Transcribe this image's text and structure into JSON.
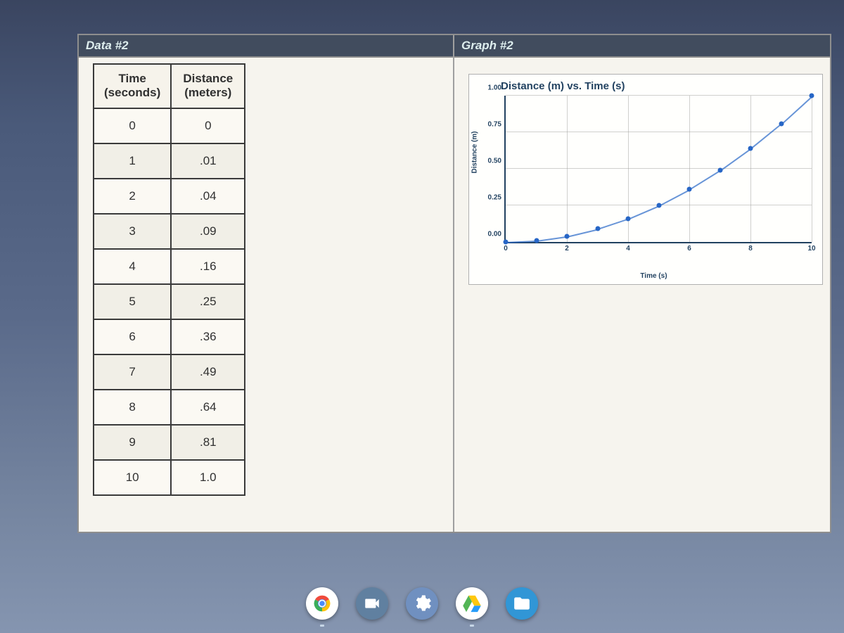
{
  "data_panel": {
    "title": "Data #2",
    "table": {
      "columns": [
        "Time\n(seconds)",
        "Distance\n(meters)"
      ],
      "rows": [
        [
          "0",
          "0"
        ],
        [
          "1",
          ".01"
        ],
        [
          "2",
          ".04"
        ],
        [
          "3",
          ".09"
        ],
        [
          "4",
          ".16"
        ],
        [
          "5",
          ".25"
        ],
        [
          "6",
          ".36"
        ],
        [
          "7",
          ".49"
        ],
        [
          "8",
          ".64"
        ],
        [
          "9",
          ".81"
        ],
        [
          "10",
          "1.0"
        ]
      ]
    }
  },
  "graph_panel": {
    "title": "Graph #2",
    "chart": {
      "type": "scatter",
      "title": "Distance (m) vs. Time (s)",
      "xlabel": "Time (s)",
      "ylabel": "Distance (m)",
      "xlim": [
        0,
        10
      ],
      "ylim": [
        0,
        1.0
      ],
      "xtick_step": 2,
      "ytick_step": 0.25,
      "xtick_labels": [
        "0",
        "2",
        "4",
        "6",
        "8",
        "10"
      ],
      "ytick_labels": [
        "0.00",
        "0.25",
        "0.50",
        "0.75",
        "1.00"
      ],
      "background_color": "#fafaf7",
      "grid_color": "#999999",
      "axis_color": "#1a3a5a",
      "point_color": "#2060c0",
      "line_color": "#2060c0",
      "point_radius": 3.5,
      "title_fontsize": 15,
      "label_fontsize": 10,
      "tick_fontsize": 10,
      "points": [
        {
          "x": 0,
          "y": 0.0
        },
        {
          "x": 1,
          "y": 0.01
        },
        {
          "x": 2,
          "y": 0.04
        },
        {
          "x": 3,
          "y": 0.09
        },
        {
          "x": 4,
          "y": 0.16
        },
        {
          "x": 5,
          "y": 0.25
        },
        {
          "x": 6,
          "y": 0.36
        },
        {
          "x": 7,
          "y": 0.49
        },
        {
          "x": 8,
          "y": 0.64
        },
        {
          "x": 9,
          "y": 0.81
        },
        {
          "x": 10,
          "y": 1.0
        }
      ]
    }
  },
  "taskbar": {
    "icons": [
      {
        "name": "chrome-icon",
        "color": "#ffffff"
      },
      {
        "name": "camera-icon",
        "color": "#4a6a9a"
      },
      {
        "name": "settings-icon",
        "color": "#5a7aaa"
      },
      {
        "name": "drive-icon",
        "color": "#ffffff"
      },
      {
        "name": "files-icon",
        "color": "#2a90d0"
      }
    ]
  }
}
